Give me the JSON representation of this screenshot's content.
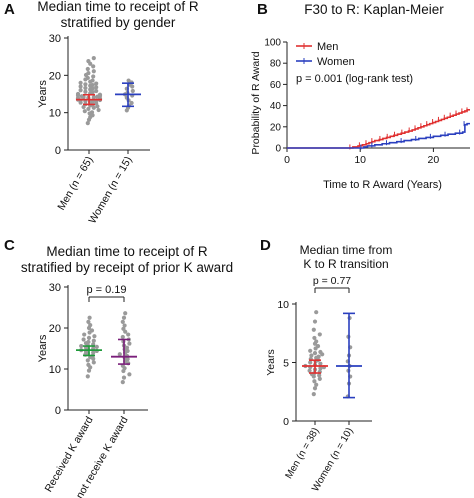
{
  "chart_data": [
    {
      "panel": "A",
      "type": "scatter",
      "title_lines": [
        "Median time to receipt of R",
        "stratified by gender"
      ],
      "ylabel": "Years",
      "ylim": [
        0,
        30
      ],
      "yticks": [
        0,
        10,
        20,
        30
      ],
      "categories": [
        "Men (n = 65)",
        "Women (n = 15)"
      ],
      "category_colors": [
        "#e03030",
        "#2a3fbf"
      ],
      "summary": [
        {
          "center": 13.5,
          "low": 12.2,
          "high": 14.8
        },
        {
          "center": 14.9,
          "low": 11.7,
          "high": 17.9
        }
      ],
      "points": [
        [
          7.2,
          8.1,
          8.8,
          9.3,
          9.8,
          10.1,
          10.4,
          10.7,
          11.0,
          11.3,
          11.5,
          11.7,
          11.9,
          12.1,
          12.3,
          12.5,
          12.7,
          12.9,
          13.0,
          13.1,
          13.2,
          13.3,
          13.4,
          13.5,
          13.6,
          13.7,
          13.8,
          13.9,
          14.0,
          14.1,
          14.2,
          14.3,
          14.4,
          14.5,
          14.6,
          14.8,
          15.0,
          15.2,
          15.4,
          15.6,
          15.8,
          16.0,
          16.2,
          16.4,
          16.6,
          16.8,
          17.0,
          17.2,
          17.4,
          17.6,
          17.8,
          18.0,
          18.3,
          18.6,
          18.9,
          19.3,
          19.7,
          20.1,
          20.6,
          21.1,
          21.7,
          22.4,
          23.1,
          23.8,
          24.6
        ],
        [
          10.6,
          11.3,
          11.9,
          12.6,
          13.3,
          14.0,
          14.6,
          14.9,
          15.3,
          15.8,
          16.4,
          17.0,
          17.5,
          18.1,
          18.6
        ]
      ]
    },
    {
      "panel": "B",
      "type": "line",
      "title": "F30 to R: Kaplan-Meier",
      "xlabel": "Time to R Award (Years)",
      "ylabel": "Probability of R Award",
      "xlim": [
        0,
        25
      ],
      "ylim": [
        0,
        100
      ],
      "xticks": [
        0,
        10,
        20
      ],
      "yticks": [
        0,
        20,
        40,
        60,
        80,
        100
      ],
      "annotation": "p = 0.001 (log-rank test)",
      "legend_position": "top-left",
      "series": [
        {
          "name": "Men",
          "color": "#e03030",
          "steps": [
            [
              0,
              0
            ],
            [
              8,
              0
            ],
            [
              9,
              1
            ],
            [
              9.7,
              2
            ],
            [
              10.3,
              3
            ],
            [
              10.8,
              4
            ],
            [
              11.2,
              5
            ],
            [
              11.6,
              6
            ],
            [
              12,
              7
            ],
            [
              12.6,
              8
            ],
            [
              13.1,
              9
            ],
            [
              13.6,
              10
            ],
            [
              14.1,
              11
            ],
            [
              14.6,
              12
            ],
            [
              15.1,
              13
            ],
            [
              15.6,
              14
            ],
            [
              16.1,
              15
            ],
            [
              16.6,
              16
            ],
            [
              17.1,
              17
            ],
            [
              17.5,
              18
            ],
            [
              17.9,
              19
            ],
            [
              18.3,
              20
            ],
            [
              18.7,
              21
            ],
            [
              19.1,
              22
            ],
            [
              19.5,
              23
            ],
            [
              19.9,
              24
            ],
            [
              20.3,
              25
            ],
            [
              20.7,
              26
            ],
            [
              21.1,
              27
            ],
            [
              21.5,
              28
            ],
            [
              21.9,
              29
            ],
            [
              22.3,
              30
            ],
            [
              22.7,
              31
            ],
            [
              23.1,
              32
            ],
            [
              23.5,
              33
            ],
            [
              23.9,
              34
            ],
            [
              24.3,
              35
            ],
            [
              24.6,
              36
            ],
            [
              25,
              36
            ]
          ]
        },
        {
          "name": "Women",
          "color": "#2a3fbf",
          "steps": [
            [
              0,
              0
            ],
            [
              10,
              0
            ],
            [
              10.5,
              1
            ],
            [
              11,
              2
            ],
            [
              12,
              3
            ],
            [
              13,
              4
            ],
            [
              14,
              5
            ],
            [
              15,
              6
            ],
            [
              16,
              7
            ],
            [
              17,
              8
            ],
            [
              18,
              9
            ],
            [
              19,
              10
            ],
            [
              20,
              11
            ],
            [
              21,
              12
            ],
            [
              22,
              13
            ],
            [
              23,
              14
            ],
            [
              24,
              15
            ],
            [
              24.3,
              22
            ],
            [
              24.6,
              23
            ],
            [
              25,
              23
            ]
          ]
        }
      ]
    },
    {
      "panel": "C",
      "type": "scatter",
      "title_lines": [
        "Median time to receipt of R",
        "stratified by receipt of prior K award"
      ],
      "ylabel": "Years",
      "ylim": [
        0,
        30
      ],
      "yticks": [
        0,
        10,
        20,
        30
      ],
      "categories": [
        "Received K award",
        "Did not receive K award"
      ],
      "category_colors": [
        "#1f9a3a",
        "#7a1f7a"
      ],
      "comparison": "p = 0.19",
      "summary": [
        {
          "center": 14.6,
          "low": 13.3,
          "high": 15.6
        },
        {
          "center": 13.0,
          "low": 11.2,
          "high": 17.2
        }
      ],
      "points": [
        [
          8.2,
          9.6,
          10.4,
          11.0,
          11.6,
          12.1,
          12.5,
          12.9,
          13.2,
          13.5,
          13.8,
          14.0,
          14.2,
          14.4,
          14.6,
          14.8,
          15.0,
          15.2,
          15.4,
          15.6,
          15.8,
          16.0,
          16.3,
          16.6,
          16.9,
          17.2,
          17.6,
          18.0,
          18.4,
          18.9,
          19.4,
          20.0,
          20.7,
          21.5,
          22.5
        ],
        [
          6.8,
          7.9,
          8.7,
          9.5,
          10.2,
          10.8,
          11.4,
          11.9,
          12.4,
          12.8,
          13.2,
          13.6,
          14.0,
          14.4,
          14.8,
          15.2,
          15.7,
          16.2,
          16.7,
          17.2,
          17.8,
          18.4,
          19.1,
          19.8,
          20.6,
          21.5,
          22.5,
          23.6
        ]
      ]
    },
    {
      "panel": "D",
      "type": "scatter",
      "title_lines": [
        "Median time from",
        "K to R transition"
      ],
      "ylabel": "Years",
      "ylim": [
        0,
        10
      ],
      "yticks": [
        0,
        5,
        10
      ],
      "categories": [
        "Men (n = 38)",
        "Women (n = 10)"
      ],
      "category_colors": [
        "#e03030",
        "#2a3fbf"
      ],
      "comparison": "p = 0.77",
      "summary": [
        {
          "center": 4.7,
          "low": 4.1,
          "high": 5.2
        },
        {
          "center": 4.7,
          "low": 2.0,
          "high": 9.2
        }
      ],
      "points": [
        [
          2.3,
          2.8,
          3.1,
          3.4,
          3.6,
          3.8,
          3.9,
          4.0,
          4.1,
          4.2,
          4.3,
          4.4,
          4.5,
          4.6,
          4.6,
          4.7,
          4.8,
          4.9,
          5.0,
          5.1,
          5.2,
          5.3,
          5.4,
          5.5,
          5.6,
          5.7,
          5.8,
          5.9,
          6.0,
          6.2,
          6.4,
          6.6,
          6.8,
          7.1,
          7.4,
          7.8,
          8.5,
          9.3
        ],
        [
          2.1,
          3.2,
          3.8,
          4.3,
          4.7,
          5.1,
          5.6,
          6.3,
          7.2,
          8.8
        ]
      ]
    }
  ]
}
